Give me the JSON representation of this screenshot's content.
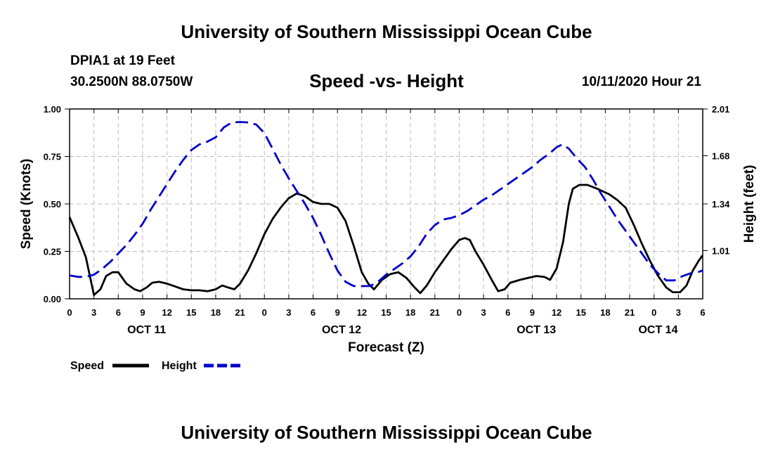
{
  "header": {
    "title_top": "University of Southern Mississippi Ocean Cube",
    "station": "DPIA1 at 19 Feet",
    "coords": "30.2500N 88.0750W",
    "datetime": "10/11/2020 Hour 21",
    "title_bottom": "University of Southern Mississippi Ocean Cube"
  },
  "chart_data": {
    "type": "line",
    "title": "Speed -vs- Height",
    "xlabel": "Forecast (Z)",
    "ylabel_left": "Speed (Knots)",
    "ylabel_right": "Height (feet)",
    "x_range_hours": [
      0,
      78
    ],
    "x_tick_labels": [
      "0",
      "3",
      "6",
      "9",
      "12",
      "15",
      "18",
      "21",
      "0",
      "3",
      "6",
      "9",
      "12",
      "15",
      "18",
      "21",
      "0",
      "3",
      "6",
      "9",
      "12",
      "15",
      "18",
      "21",
      "0",
      "3",
      "6"
    ],
    "date_labels": [
      {
        "label": "OCT 11",
        "hour": 9.5
      },
      {
        "label": "OCT 12",
        "hour": 33.5
      },
      {
        "label": "OCT 13",
        "hour": 57.5
      },
      {
        "label": "OCT 14",
        "hour": 72.5
      }
    ],
    "y_left": {
      "min": 0,
      "max": 1.0,
      "ticks": [
        0,
        0.25,
        0.5,
        0.75,
        1.0
      ],
      "tick_labels": [
        "0.00",
        "0.25",
        "0.50",
        "0.75",
        "1.00"
      ]
    },
    "y_right": {
      "min": 0.67,
      "max": 2.01,
      "ticks": [
        1.01,
        1.34,
        1.68,
        2.01
      ],
      "tick_labels": [
        "1.01",
        "1.34",
        "1.68",
        "2.01"
      ]
    },
    "legend": {
      "speed_label": "Speed",
      "height_label": "Height"
    },
    "colors": {
      "speed": "#000000",
      "height": "#0000cc",
      "grid": "#bbbbbb"
    },
    "series": [
      {
        "name": "Speed",
        "axis": "left",
        "points": [
          [
            0,
            0.43
          ],
          [
            1,
            0.33
          ],
          [
            2,
            0.22
          ],
          [
            3,
            0.02
          ],
          [
            3.8,
            0.05
          ],
          [
            4.5,
            0.12
          ],
          [
            5.3,
            0.14
          ],
          [
            6,
            0.14
          ],
          [
            7,
            0.08
          ],
          [
            8,
            0.05
          ],
          [
            8.7,
            0.04
          ],
          [
            9.5,
            0.06
          ],
          [
            10.2,
            0.085
          ],
          [
            11,
            0.09
          ],
          [
            12,
            0.08
          ],
          [
            13,
            0.065
          ],
          [
            14,
            0.05
          ],
          [
            15,
            0.045
          ],
          [
            16,
            0.045
          ],
          [
            17,
            0.04
          ],
          [
            18,
            0.05
          ],
          [
            18.8,
            0.07
          ],
          [
            19.5,
            0.06
          ],
          [
            20.3,
            0.05
          ],
          [
            21,
            0.08
          ],
          [
            22,
            0.15
          ],
          [
            23,
            0.24
          ],
          [
            24,
            0.34
          ],
          [
            25,
            0.42
          ],
          [
            26,
            0.48
          ],
          [
            27,
            0.53
          ],
          [
            28,
            0.555
          ],
          [
            29,
            0.54
          ],
          [
            30,
            0.51
          ],
          [
            31,
            0.5
          ],
          [
            32,
            0.5
          ],
          [
            33,
            0.48
          ],
          [
            34,
            0.41
          ],
          [
            35,
            0.28
          ],
          [
            36,
            0.14
          ],
          [
            36.8,
            0.08
          ],
          [
            37.5,
            0.05
          ],
          [
            38.5,
            0.1
          ],
          [
            39.5,
            0.13
          ],
          [
            40.5,
            0.14
          ],
          [
            41.5,
            0.11
          ],
          [
            42.5,
            0.06
          ],
          [
            43.2,
            0.03
          ],
          [
            44,
            0.07
          ],
          [
            45,
            0.14
          ],
          [
            46,
            0.2
          ],
          [
            47,
            0.26
          ],
          [
            48,
            0.31
          ],
          [
            48.7,
            0.32
          ],
          [
            49.3,
            0.31
          ],
          [
            50,
            0.25
          ],
          [
            51,
            0.18
          ],
          [
            52,
            0.1
          ],
          [
            52.8,
            0.04
          ],
          [
            53.6,
            0.05
          ],
          [
            54.3,
            0.085
          ],
          [
            55.5,
            0.1
          ],
          [
            56.5,
            0.11
          ],
          [
            57.5,
            0.12
          ],
          [
            58.5,
            0.115
          ],
          [
            59.2,
            0.1
          ],
          [
            60,
            0.16
          ],
          [
            60.8,
            0.3
          ],
          [
            61.5,
            0.5
          ],
          [
            62,
            0.58
          ],
          [
            62.8,
            0.6
          ],
          [
            63.8,
            0.6
          ],
          [
            65,
            0.58
          ],
          [
            66.5,
            0.55
          ],
          [
            67.5,
            0.52
          ],
          [
            68.5,
            0.48
          ],
          [
            69.5,
            0.39
          ],
          [
            70.5,
            0.29
          ],
          [
            71.5,
            0.2
          ],
          [
            72.5,
            0.12
          ],
          [
            73.5,
            0.06
          ],
          [
            74.3,
            0.035
          ],
          [
            75.2,
            0.035
          ],
          [
            76,
            0.07
          ],
          [
            76.8,
            0.15
          ],
          [
            77.5,
            0.2
          ],
          [
            78,
            0.23
          ]
        ]
      },
      {
        "name": "Height",
        "axis": "right",
        "points": [
          [
            0,
            0.835
          ],
          [
            1,
            0.825
          ],
          [
            2,
            0.825
          ],
          [
            3,
            0.84
          ],
          [
            4,
            0.88
          ],
          [
            5,
            0.93
          ],
          [
            6,
            0.99
          ],
          [
            7,
            1.05
          ],
          [
            8,
            1.12
          ],
          [
            9,
            1.2
          ],
          [
            10,
            1.3
          ],
          [
            11,
            1.39
          ],
          [
            12,
            1.48
          ],
          [
            13,
            1.57
          ],
          [
            14,
            1.65
          ],
          [
            15,
            1.72
          ],
          [
            16,
            1.76
          ],
          [
            17,
            1.78
          ],
          [
            18,
            1.81
          ],
          [
            19,
            1.88
          ],
          [
            20,
            1.915
          ],
          [
            21,
            1.918
          ],
          [
            22,
            1.915
          ],
          [
            23,
            1.9
          ],
          [
            24,
            1.84
          ],
          [
            25,
            1.73
          ],
          [
            26,
            1.62
          ],
          [
            27,
            1.52
          ],
          [
            28,
            1.43
          ],
          [
            29,
            1.34
          ],
          [
            30,
            1.24
          ],
          [
            31,
            1.12
          ],
          [
            32,
            0.99
          ],
          [
            33,
            0.87
          ],
          [
            34,
            0.79
          ],
          [
            35,
            0.76
          ],
          [
            36,
            0.76
          ],
          [
            37,
            0.76
          ],
          [
            38,
            0.79
          ],
          [
            39,
            0.84
          ],
          [
            40,
            0.88
          ],
          [
            41,
            0.92
          ],
          [
            42,
            0.97
          ],
          [
            43,
            1.04
          ],
          [
            44,
            1.13
          ],
          [
            45,
            1.19
          ],
          [
            46,
            1.23
          ],
          [
            47,
            1.24
          ],
          [
            48,
            1.26
          ],
          [
            49,
            1.29
          ],
          [
            50,
            1.33
          ],
          [
            51,
            1.37
          ],
          [
            52,
            1.4
          ],
          [
            53,
            1.44
          ],
          [
            54,
            1.48
          ],
          [
            55,
            1.52
          ],
          [
            56,
            1.56
          ],
          [
            57,
            1.6
          ],
          [
            58,
            1.65
          ],
          [
            59,
            1.69
          ],
          [
            60,
            1.74
          ],
          [
            60.7,
            1.76
          ],
          [
            61.5,
            1.73
          ],
          [
            62.5,
            1.66
          ],
          [
            63.5,
            1.6
          ],
          [
            64.5,
            1.51
          ],
          [
            65.5,
            1.41
          ],
          [
            66.5,
            1.32
          ],
          [
            67.5,
            1.23
          ],
          [
            68.5,
            1.15
          ],
          [
            69.5,
            1.07
          ],
          [
            70.5,
            0.99
          ],
          [
            71.5,
            0.91
          ],
          [
            72.5,
            0.85
          ],
          [
            73.5,
            0.8
          ],
          [
            74.5,
            0.8
          ],
          [
            75.5,
            0.83
          ],
          [
            76.5,
            0.85
          ],
          [
            77.5,
            0.86
          ],
          [
            78,
            0.87
          ]
        ]
      }
    ]
  }
}
